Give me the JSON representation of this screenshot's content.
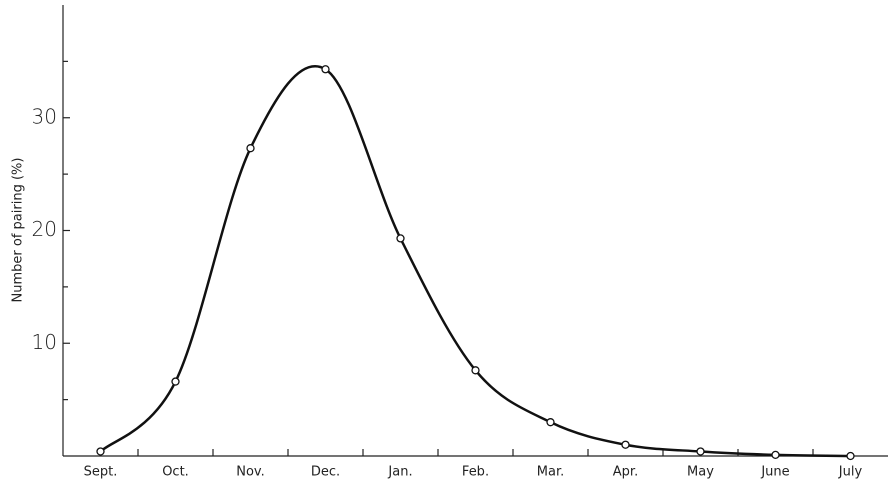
{
  "chart_data": {
    "type": "line",
    "y_label": "Number of pairing (%)",
    "categories": [
      "Sept.",
      "Oct.",
      "Nov.",
      "Dec.",
      "Jan.",
      "Feb.",
      "Mar.",
      "Apr.",
      "May",
      "June",
      "July"
    ],
    "values": [
      0.4,
      6.6,
      27.3,
      34.3,
      19.3,
      7.6,
      3.0,
      1.0,
      0.4,
      0.1,
      0
    ],
    "color": "#111111",
    "ylim": [
      0,
      40
    ],
    "yticks": [
      10,
      20,
      30
    ],
    "minor_yticks": [
      5,
      15,
      25,
      35
    ]
  }
}
